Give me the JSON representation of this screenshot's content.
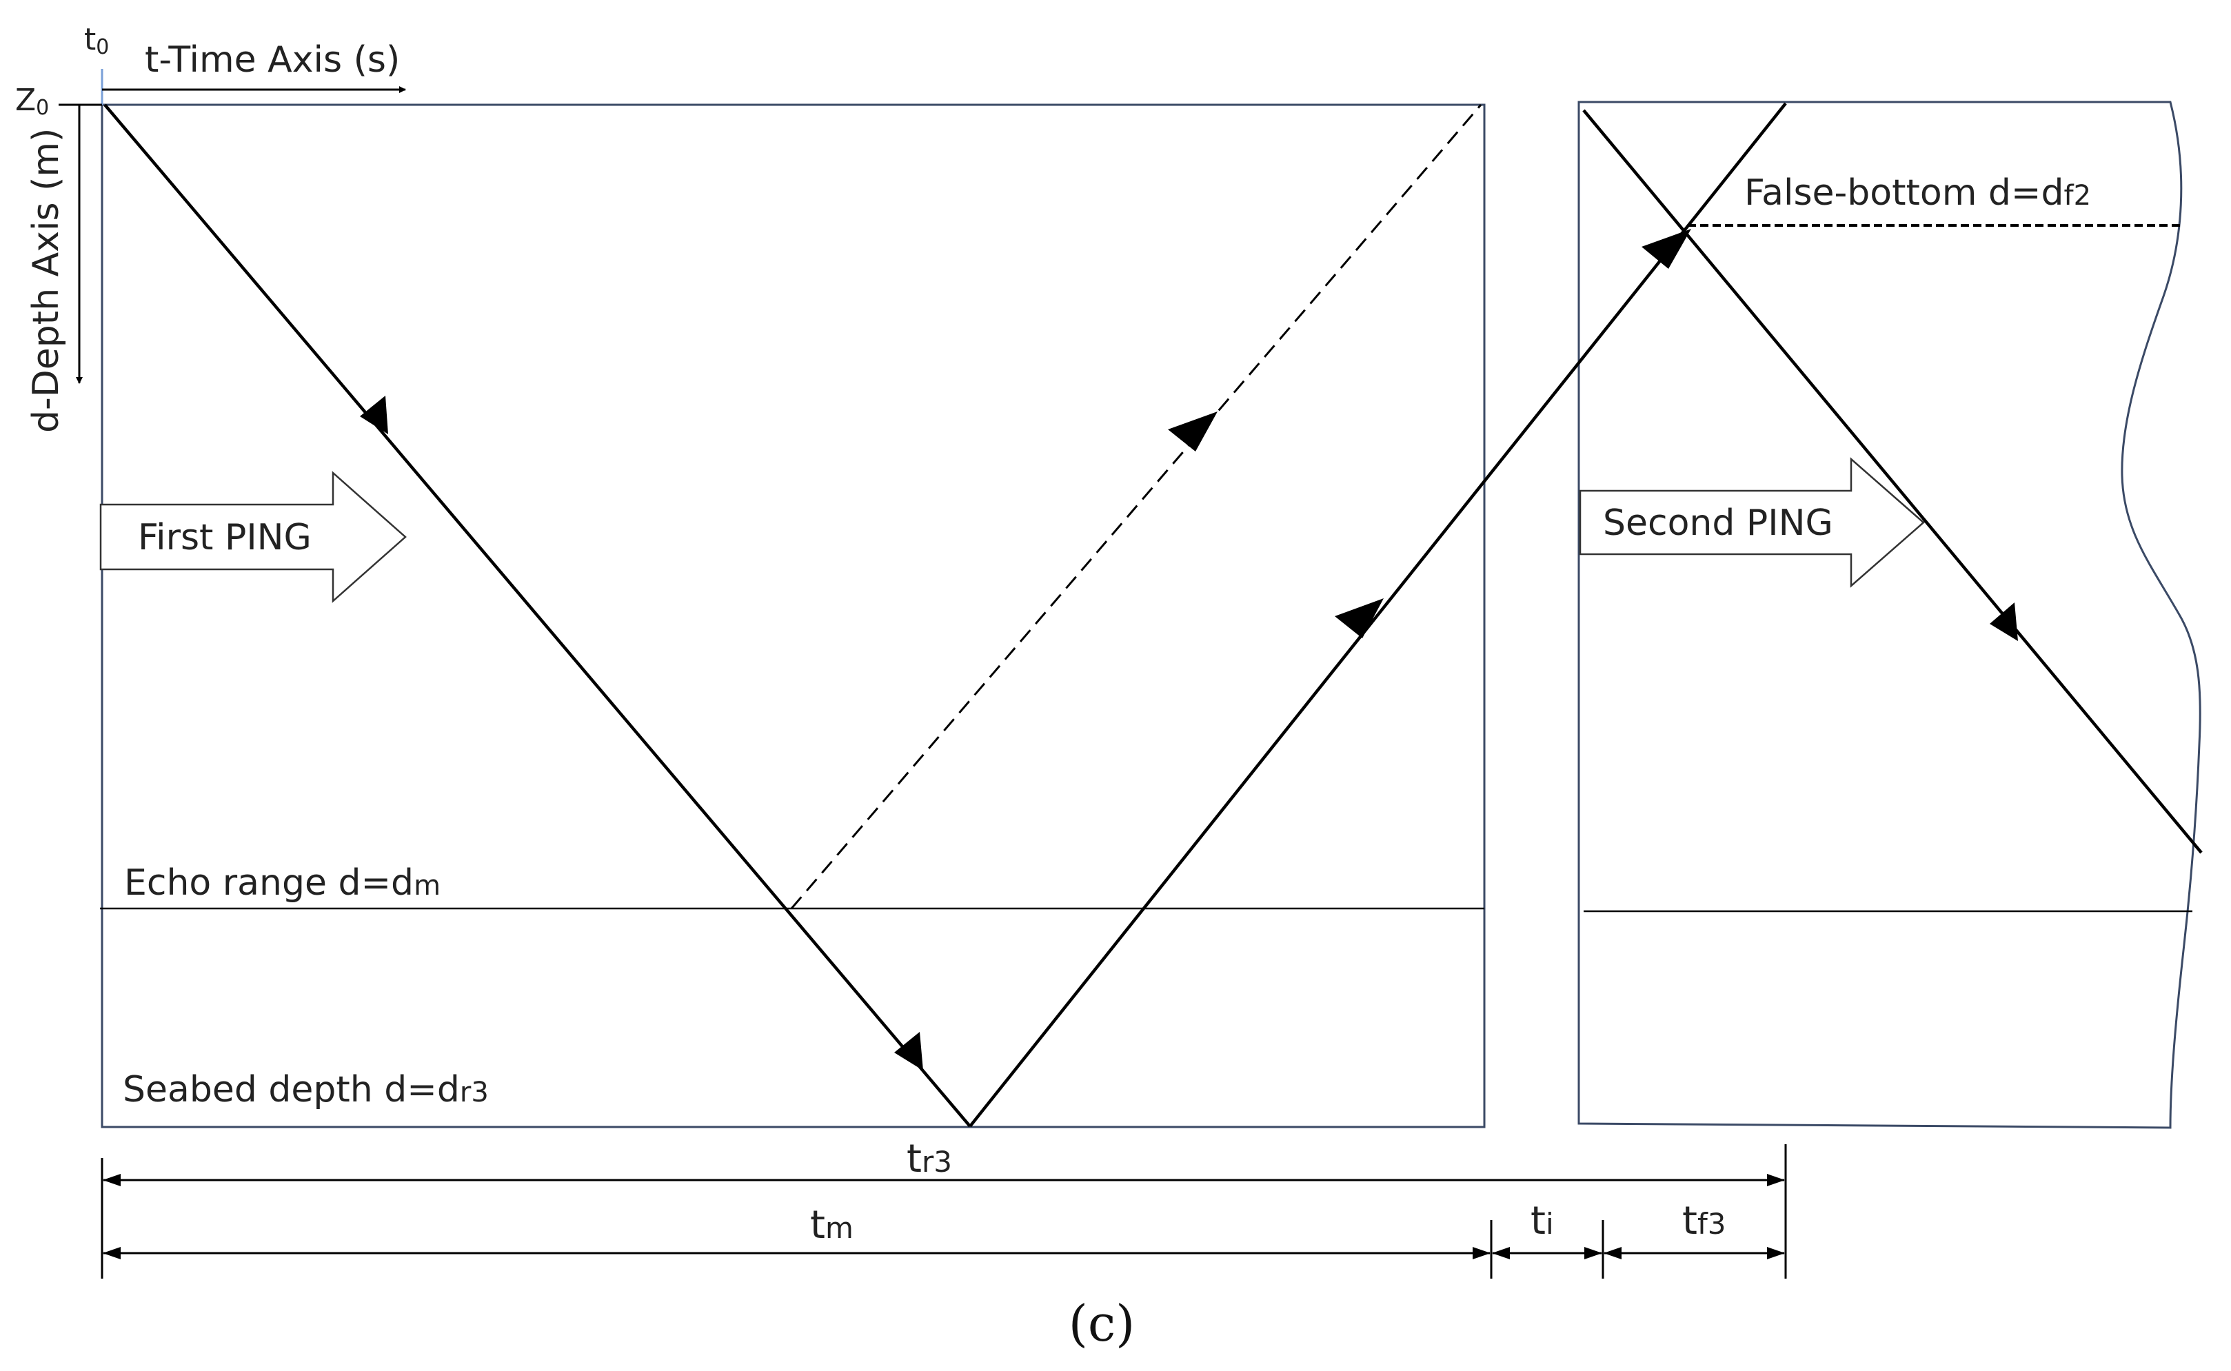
{
  "axes": {
    "t0_label": "t",
    "t0_sub": "0",
    "time_axis_label": "t-Time Axis (s)",
    "z0_label": "Z",
    "z0_sub": "0",
    "depth_axis_label": "d-Depth Axis (m)"
  },
  "pings": {
    "first": "First PING",
    "second": "Second PING"
  },
  "levels": {
    "echo_range_prefix": "Echo range d=d",
    "echo_range_sub": "m",
    "seabed_prefix": "Seabed depth d=d",
    "seabed_sub": "r3",
    "false_bottom_prefix": "False-bottom d=d",
    "false_bottom_sub": "f2"
  },
  "intervals": {
    "tr3_main": "t",
    "tr3_sub": "r3",
    "tm_main": "t",
    "tm_sub": "m",
    "ti_main": "t",
    "ti_sub": "i",
    "tf3_main": "t",
    "tf3_sub": "f3"
  },
  "caption": "(c)",
  "colors": {
    "frame": "#3b4a66",
    "ink": "#000000",
    "axis_tick": "#7aa0d8"
  }
}
